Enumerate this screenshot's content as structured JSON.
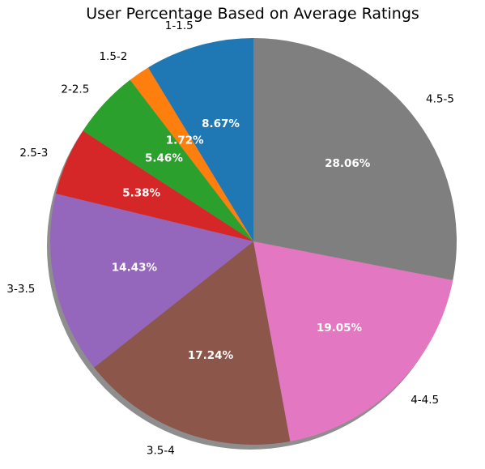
{
  "chart_data": {
    "type": "pie",
    "title": "User Percentage Based on Average Ratings",
    "categories": [
      "1-1.5",
      "1.5-2",
      "2-2.5",
      "2.5-3",
      "3-3.5",
      "3.5-4",
      "4-4.5",
      "4.5-5"
    ],
    "values": [
      8.67,
      1.72,
      5.46,
      5.38,
      14.43,
      17.24,
      19.05,
      28.06
    ],
    "value_labels": [
      "8.67%",
      "1.72%",
      "5.46%",
      "5.38%",
      "14.43%",
      "17.24%",
      "19.05%",
      "28.06%"
    ],
    "colors": [
      "#1f77b4",
      "#ff7f0e",
      "#2ca02c",
      "#d62728",
      "#9467bd",
      "#8c564b",
      "#e377c2",
      "#7f7f7f"
    ],
    "start_angle_deg": 90,
    "direction": "counterclockwise",
    "shadow": true
  }
}
